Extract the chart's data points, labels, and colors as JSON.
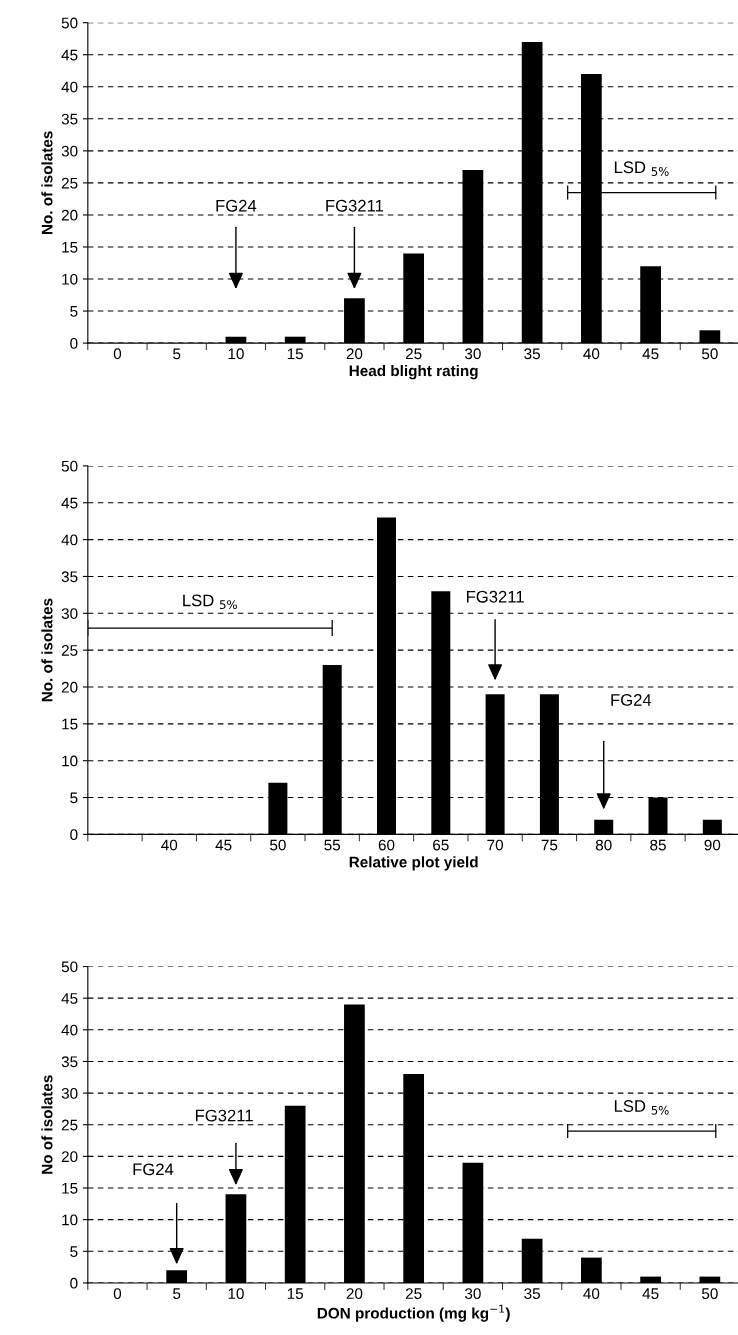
{
  "chart_data": [
    {
      "type": "bar",
      "xlabel": "Head blight rating",
      "ylabel": "No. of isolates",
      "categories": [
        "0",
        "5",
        "10",
        "15",
        "20",
        "25",
        "30",
        "35",
        "40",
        "45",
        "50"
      ],
      "series": [
        {
          "color": "#000000",
          "values": [
            0,
            0,
            1,
            1,
            7,
            14,
            27,
            47,
            42,
            12,
            2
          ]
        }
      ],
      "ylim": [
        0,
        50
      ],
      "yticks": [
        0,
        5,
        10,
        15,
        20,
        25,
        30,
        35,
        40,
        45,
        50
      ],
      "grid": "y",
      "annotations": [
        "FG24",
        "FG3211",
        "LSD $_{5%}$"
      ]
    },
    {
      "type": "bar",
      "xlabel": "Relative plot yield",
      "ylabel": "No. of isolates",
      "categories": [
        null,
        "40",
        "45",
        "50",
        "55",
        "60",
        "65",
        "70",
        "75",
        "80",
        "85",
        "90"
      ],
      "series": [
        {
          "color": "#000000",
          "values": [
            0,
            0,
            0,
            7,
            23,
            43,
            33,
            19,
            19,
            2,
            5,
            2
          ]
        }
      ],
      "ylim": [
        0,
        50
      ],
      "yticks": [
        0,
        5,
        10,
        15,
        20,
        25,
        30,
        35,
        40,
        45,
        50
      ],
      "grid": "y",
      "annotations": [
        "FG3211",
        "FG24",
        "LSD $_{5%}$"
      ]
    },
    {
      "type": "bar",
      "xlabel": "DON production (mg kg$^{−1}$)",
      "ylabel": "No of isolates",
      "categories": [
        "0",
        "5",
        "10",
        "15",
        "20",
        "25",
        "30",
        "35",
        "40",
        "45",
        "50"
      ],
      "series": [
        {
          "color": "#000000",
          "values": [
            0,
            2,
            14,
            28,
            44,
            33,
            19,
            7,
            4,
            1,
            1
          ]
        }
      ],
      "ylim": [
        0,
        50
      ],
      "yticks": [
        0,
        5,
        10,
        15,
        20,
        25,
        30,
        35,
        40,
        45,
        50
      ],
      "grid": "y",
      "annotations": [
        "FG24",
        "FG3211",
        "LSD $_{5%}$"
      ]
    }
  ]
}
